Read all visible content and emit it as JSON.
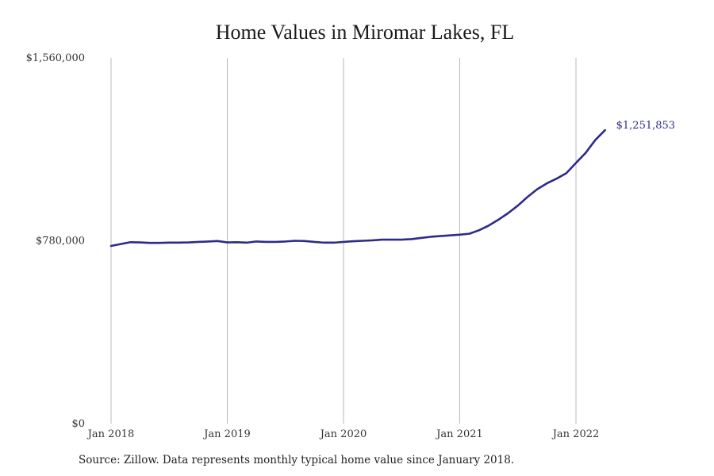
{
  "chart_data": {
    "type": "line",
    "title": "Home Values in Miromar Lakes, FL",
    "xlabel": "",
    "ylabel": "",
    "x_ticks": [
      {
        "label": "Jan 2018",
        "index": 0
      },
      {
        "label": "Jan 2019",
        "index": 12
      },
      {
        "label": "Jan 2020",
        "index": 24
      },
      {
        "label": "Jan 2021",
        "index": 36
      },
      {
        "label": "Jan 2022",
        "index": 48
      }
    ],
    "y_ticks": [
      {
        "label": "$0",
        "value": 0
      },
      {
        "label": "$780,000",
        "value": 780000
      },
      {
        "label": "$1,560,000",
        "value": 1560000
      }
    ],
    "ylim": [
      0,
      1560000
    ],
    "xlim": [
      "Jan 2018",
      "Dec 2022"
    ],
    "grid": "vertical",
    "line_color": "#2e2a8a",
    "series": [
      {
        "values": [
          758000,
          766000,
          774000,
          773000,
          771000,
          771000,
          772000,
          772000,
          773000,
          775000,
          777000,
          779000,
          773000,
          774000,
          772000,
          777000,
          775000,
          775000,
          777000,
          780000,
          779000,
          775000,
          772000,
          772000,
          775000,
          778000,
          780000,
          782000,
          785000,
          785000,
          785000,
          787000,
          792000,
          797000,
          800000,
          803000,
          806000,
          810000,
          825000,
          845000,
          870000,
          898000,
          930000,
          967000,
          1000000,
          1025000,
          1045000,
          1068000,
          1112000,
          1155000,
          1210000,
          1251853
        ]
      }
    ],
    "end_label": "$1,251,853"
  },
  "footer": {
    "source_text": "Source: Zillow. Data represents monthly typical home value since January 2018."
  }
}
